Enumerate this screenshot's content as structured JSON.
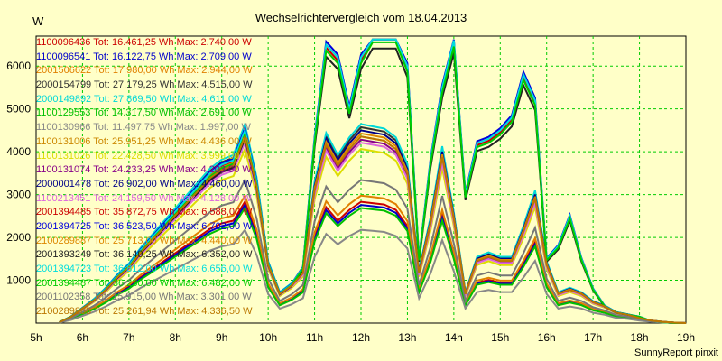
{
  "chart_data": {
    "type": "line",
    "title": "Wechselrichtervergleich vom 18.04.2013",
    "ylabel": "W",
    "xlabel": "",
    "footer": "SunnyReport pinxit",
    "x_ticks": [
      "5h",
      "6h",
      "7h",
      "8h",
      "9h",
      "10h",
      "11h",
      "12h",
      "13h",
      "14h",
      "15h",
      "16h",
      "17h",
      "18h",
      "19h"
    ],
    "y_ticks": [
      "1000",
      "2000",
      "3000",
      "4000",
      "5000",
      "6000"
    ],
    "xlim": [
      5,
      19
    ],
    "ylim": [
      0,
      6700
    ],
    "grid": true,
    "legend_position": "top-left",
    "x": [
      5.5,
      5.75,
      6,
      6.25,
      6.5,
      6.75,
      7,
      7.25,
      7.5,
      7.75,
      8,
      8.25,
      8.5,
      8.75,
      9,
      9.25,
      9.5,
      9.75,
      10,
      10.25,
      10.5,
      10.75,
      11,
      11.25,
      11.5,
      11.75,
      12,
      12.25,
      12.5,
      12.75,
      13,
      13.25,
      13.5,
      13.75,
      14,
      14.25,
      14.5,
      14.75,
      15,
      15.25,
      15.5,
      15.75,
      16,
      16.25,
      16.5,
      16.75,
      17,
      17.25,
      17.5,
      17.75,
      18,
      18.25,
      18.5,
      18.75,
      19
    ],
    "series": [
      {
        "name": "1100096436 Tot: 16.461,25 Wh Max: 2.740,00 W",
        "color": "#cc0000",
        "profile": "A",
        "scale": 0.39
      },
      {
        "name": "1100096541 Tot: 16.122,75 Wh Max: 2.709,00 W",
        "color": "#0000cc",
        "profile": "A",
        "scale": 0.38
      },
      {
        "name": "2001506622 Tot: 17.980,00 Wh Max: 2.944,00 W",
        "color": "#e08000",
        "profile": "A",
        "scale": 0.41
      },
      {
        "name": "2000154799 Tot: 27.179,25 Wh Max: 4.515,00 W",
        "color": "#333333",
        "profile": "A",
        "scale": 0.63
      },
      {
        "name": "2000149892 Tot: 27.869,50 Wh Max: 4.611,00 W",
        "color": "#00d8d8",
        "profile": "A",
        "scale": 0.64
      },
      {
        "name": "1100129553 Tot: 14.317,50 Wh Max: 2.691,00 W",
        "color": "#00c000",
        "profile": "A",
        "scale": 0.37
      },
      {
        "name": "1100130966 Tot: 11.497,75 Wh Max: 1.997,00 W",
        "color": "#888888",
        "profile": "A",
        "scale": 0.3
      },
      {
        "name": "1100131006 Tot: 25.951,25 Wh Max: 4.436,00 W",
        "color": "#cc8800",
        "profile": "A",
        "scale": 0.6
      },
      {
        "name": "1100131026 Tot: 22.428,50 Wh Max: 3.999,00 W",
        "color": "#dddd00",
        "profile": "A",
        "scale": 0.56
      },
      {
        "name": "1100131074 Tot: 24.233,25 Wh Max: 4.203,00 W",
        "color": "#880088",
        "profile": "A",
        "scale": 0.59
      },
      {
        "name": "2000001478 Tot: 26.902,00 Wh Max: 4.460,00 W",
        "color": "#000088",
        "profile": "A",
        "scale": 0.62
      },
      {
        "name": "1100213451 Tot: 24.159,50 Wh Max: 4.128,00 W",
        "color": "#dd66dd",
        "profile": "A",
        "scale": 0.58
      },
      {
        "name": "2001394485 Tot: 35.872,75 Wh Max: 6.588,00 W",
        "color": "#cc0000",
        "profile": "B",
        "scale": 0.91
      },
      {
        "name": "2001394725 Tot: 36.523,50 Wh Max: 6.702,00 W",
        "color": "#0000dd",
        "profile": "B",
        "scale": 0.93
      },
      {
        "name": "2100289887 Tot: 25.713,00 Wh Max: 4.440,00 W",
        "color": "#dd8800",
        "profile": "A",
        "scale": 0.61
      },
      {
        "name": "2001393249 Tot: 36.140,25 Wh Max: 6.352,00 W",
        "color": "#222222",
        "profile": "B",
        "scale": 0.88
      },
      {
        "name": "2001394723 Tot: 36.812,00 Wh Max: 6.656,00 W",
        "color": "#00dddd",
        "profile": "B",
        "scale": 0.92
      },
      {
        "name": "2001394487 Tot: 36.230,00 Wh Max: 6.482,00 W",
        "color": "#00cc00",
        "profile": "B",
        "scale": 0.9
      },
      {
        "name": "2001102358 Tot: 15.915,00 Wh Max: 3.301,00 W",
        "color": "#777777",
        "profile": "A",
        "scale": 0.46
      },
      {
        "name": "2100289888 Tot: 25.261,94 Wh Max: 4.336,50 W",
        "color": "#bb7700",
        "profile": "A",
        "scale": 0.6
      }
    ],
    "profiles": {
      "A": [
        20,
        150,
        350,
        550,
        800,
        1100,
        1350,
        1700,
        2000,
        2300,
        2600,
        2900,
        3200,
        3500,
        3700,
        3800,
        4500,
        3300,
        1400,
        700,
        900,
        1200,
        3200,
        4300,
        3800,
        4200,
        4500,
        4450,
        4400,
        4200,
        3600,
        1200,
        2400,
        4000,
        2500,
        700,
        1500,
        1600,
        1500,
        1500,
        2200,
        3000,
        1400,
        700,
        800,
        700,
        500,
        400,
        250,
        200,
        120,
        60,
        30,
        10,
        0
      ],
      "B": [
        20,
        150,
        350,
        550,
        800,
        1100,
        1350,
        1700,
        2000,
        2300,
        2600,
        2900,
        3200,
        3500,
        3700,
        3800,
        4500,
        3300,
        1400,
        700,
        900,
        1300,
        4300,
        6500,
        6200,
        5000,
        6200,
        6700,
        6700,
        6700,
        6000,
        1500,
        3800,
        5500,
        6600,
        3000,
        4200,
        4300,
        4500,
        4800,
        5800,
        5200,
        1500,
        1800,
        2500,
        1500,
        800,
        400,
        250,
        200,
        150,
        50,
        20,
        0,
        0
      ]
    }
  }
}
